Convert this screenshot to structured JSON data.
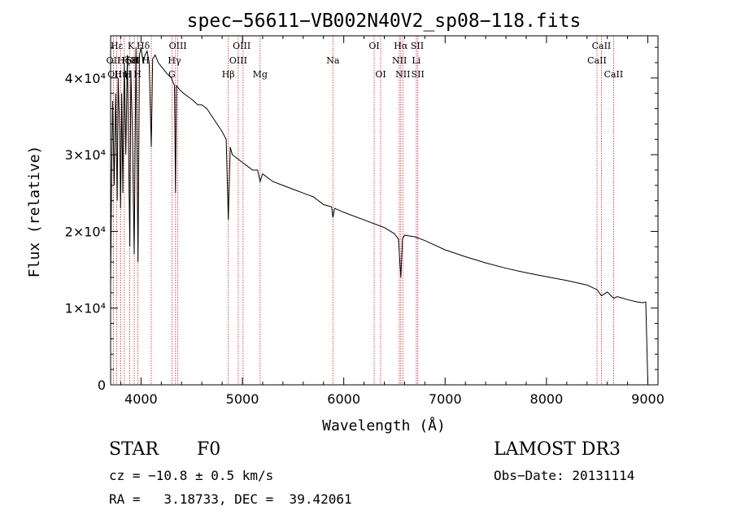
{
  "chart_data": {
    "type": "line",
    "title": "spec−56611−VB002N40V2_sp08−118.fits",
    "xlabel": "Wavelength (Å)",
    "ylabel": "Flux (relative)",
    "xlim": [
      3700,
      9100
    ],
    "ylim": [
      0,
      45500
    ],
    "x_ticks": [
      4000,
      5000,
      6000,
      7000,
      8000,
      9000
    ],
    "x_tick_labels": [
      "4000",
      "5000",
      "6000",
      "7000",
      "8000",
      "9000"
    ],
    "y_ticks": [
      0,
      10000,
      20000,
      30000,
      40000
    ],
    "y_tick_labels": [
      "0",
      "1×10⁴",
      "2×10⁴",
      "3×10⁴",
      "4×10⁴"
    ],
    "series": [
      {
        "name": "spectrum",
        "x": [
          3700,
          3710,
          3720,
          3735,
          3750,
          3765,
          3775,
          3790,
          3798,
          3810,
          3820,
          3835,
          3850,
          3865,
          3878,
          3889,
          3900,
          3915,
          3933,
          3950,
          3960,
          3970,
          3985,
          4000,
          4020,
          4040,
          4060,
          4080,
          4101,
          4115,
          4140,
          4170,
          4200,
          4230,
          4260,
          4300,
          4330,
          4340,
          4350,
          4380,
          4420,
          4470,
          4520,
          4560,
          4600,
          4650,
          4700,
          4750,
          4800,
          4840,
          4861,
          4880,
          4900,
          4950,
          5000,
          5050,
          5100,
          5150,
          5175,
          5200,
          5300,
          5400,
          5500,
          5600,
          5700,
          5800,
          5880,
          5893,
          5910,
          6000,
          6100,
          6200,
          6300,
          6400,
          6500,
          6540,
          6563,
          6580,
          6600,
          6700,
          6800,
          6900,
          7000,
          7200,
          7400,
          7600,
          7800,
          8000,
          8200,
          8400,
          8500,
          8542,
          8600,
          8662,
          8700,
          8800,
          8900,
          8950,
          8980,
          9000
        ],
        "y": [
          13000,
          27000,
          37000,
          26000,
          38000,
          24000,
          40000,
          33000,
          23000,
          38000,
          25000,
          42000,
          30000,
          43000,
          30000,
          18000,
          41000,
          33000,
          17000,
          44000,
          31000,
          16000,
          43000,
          44000,
          42000,
          43000,
          43500,
          42000,
          31000,
          42500,
          43000,
          42000,
          41500,
          41000,
          40500,
          40000,
          39000,
          25000,
          39000,
          38500,
          38000,
          37500,
          37000,
          36500,
          36500,
          36000,
          35000,
          34000,
          33000,
          32000,
          21500,
          31000,
          30000,
          29500,
          29000,
          28500,
          28000,
          28000,
          26500,
          27500,
          26500,
          26000,
          25500,
          25000,
          24500,
          23500,
          23200,
          21800,
          23000,
          22500,
          22000,
          21500,
          21000,
          20500,
          19700,
          19000,
          14000,
          19000,
          19500,
          19300,
          18800,
          18200,
          17600,
          16700,
          15900,
          15200,
          14600,
          14100,
          13600,
          13000,
          12400,
          11600,
          12100,
          11300,
          11500,
          11100,
          10800,
          10700,
          10800,
          300
        ]
      }
    ],
    "line_markers": {
      "lines": [
        {
          "label": "Hε",
          "wavelength": 3761,
          "row": 1
        },
        {
          "label": "OII",
          "wavelength": 3728,
          "row": 2
        },
        {
          "label": "OII",
          "wavelength": 3740,
          "row": 3
        },
        {
          "label": "Hη",
          "wavelength": 3801,
          "row": 3
        },
        {
          "label": "Hζ",
          "wavelength": 3827,
          "row": 2
        },
        {
          "label": "K",
          "wavelength": 3900,
          "row": 1
        },
        {
          "label": "H",
          "wavelength": 3869,
          "row": 3
        },
        {
          "label": "HeI",
          "wavelength": 3892,
          "row": 2
        },
        {
          "label": "SII",
          "wavelength": 3925,
          "row": 2
        },
        {
          "label": "H",
          "wavelength": 3941,
          "row": 2
        },
        {
          "label": "H",
          "wavelength": 3965,
          "row": 3
        },
        {
          "label": "Hδ",
          "wavelength": 4022,
          "row": 1
        },
        {
          "label": "H",
          "wavelength": 4045,
          "row": 2
        },
        {
          "label": "OIII",
          "wavelength": 4363,
          "row": 1
        },
        {
          "label": "Hγ",
          "wavelength": 4330,
          "row": 2
        },
        {
          "label": "G",
          "wavelength": 4305,
          "row": 3
        },
        {
          "label": "OIII",
          "wavelength": 4993,
          "row": 1
        },
        {
          "label": "OIII",
          "wavelength": 4959,
          "row": 2
        },
        {
          "label": "Hβ",
          "wavelength": 4861,
          "row": 3
        },
        {
          "label": "Mg",
          "wavelength": 5175,
          "row": 3
        },
        {
          "label": "Na",
          "wavelength": 5893,
          "row": 2
        },
        {
          "label": "OI",
          "wavelength": 6300,
          "row": 1
        },
        {
          "label": "OI",
          "wavelength": 6364,
          "row": 3
        },
        {
          "label": "Hα",
          "wavelength": 6563,
          "row": 1
        },
        {
          "label": "SII",
          "wavelength": 6725,
          "row": 1
        },
        {
          "label": "NII",
          "wavelength": 6550,
          "row": 2
        },
        {
          "label": "Li",
          "wavelength": 6715,
          "row": 2
        },
        {
          "label": "NII",
          "wavelength": 6583,
          "row": 3
        },
        {
          "label": "SII",
          "wavelength": 6731,
          "row": 3
        },
        {
          "label": "CaII",
          "wavelength": 8542,
          "row": 1
        },
        {
          "label": "CaII",
          "wavelength": 8498,
          "row": 2
        },
        {
          "label": "CaII",
          "wavelength": 8662,
          "row": 3
        }
      ],
      "vlines": [
        3728,
        3761,
        3801,
        3835,
        3889,
        3933,
        3969,
        4101,
        4305,
        4340,
        4363,
        4861,
        4959,
        5007,
        5175,
        5893,
        6300,
        6364,
        6548,
        6563,
        6583,
        6716,
        6731,
        8498,
        8542,
        8662
      ]
    }
  },
  "info": {
    "object_class": "STAR",
    "subclass": "F0",
    "survey": "LAMOST DR3",
    "redshift": "cz = −10.8 ± 0.5 km/s",
    "obs_date": "Obs−Date: 20131114",
    "coords": "RA =   3.18733, DEC =  39.42061"
  },
  "colors": {
    "spectrum": "#000000",
    "marker_line": "#cc2222",
    "axes": "#000000"
  }
}
